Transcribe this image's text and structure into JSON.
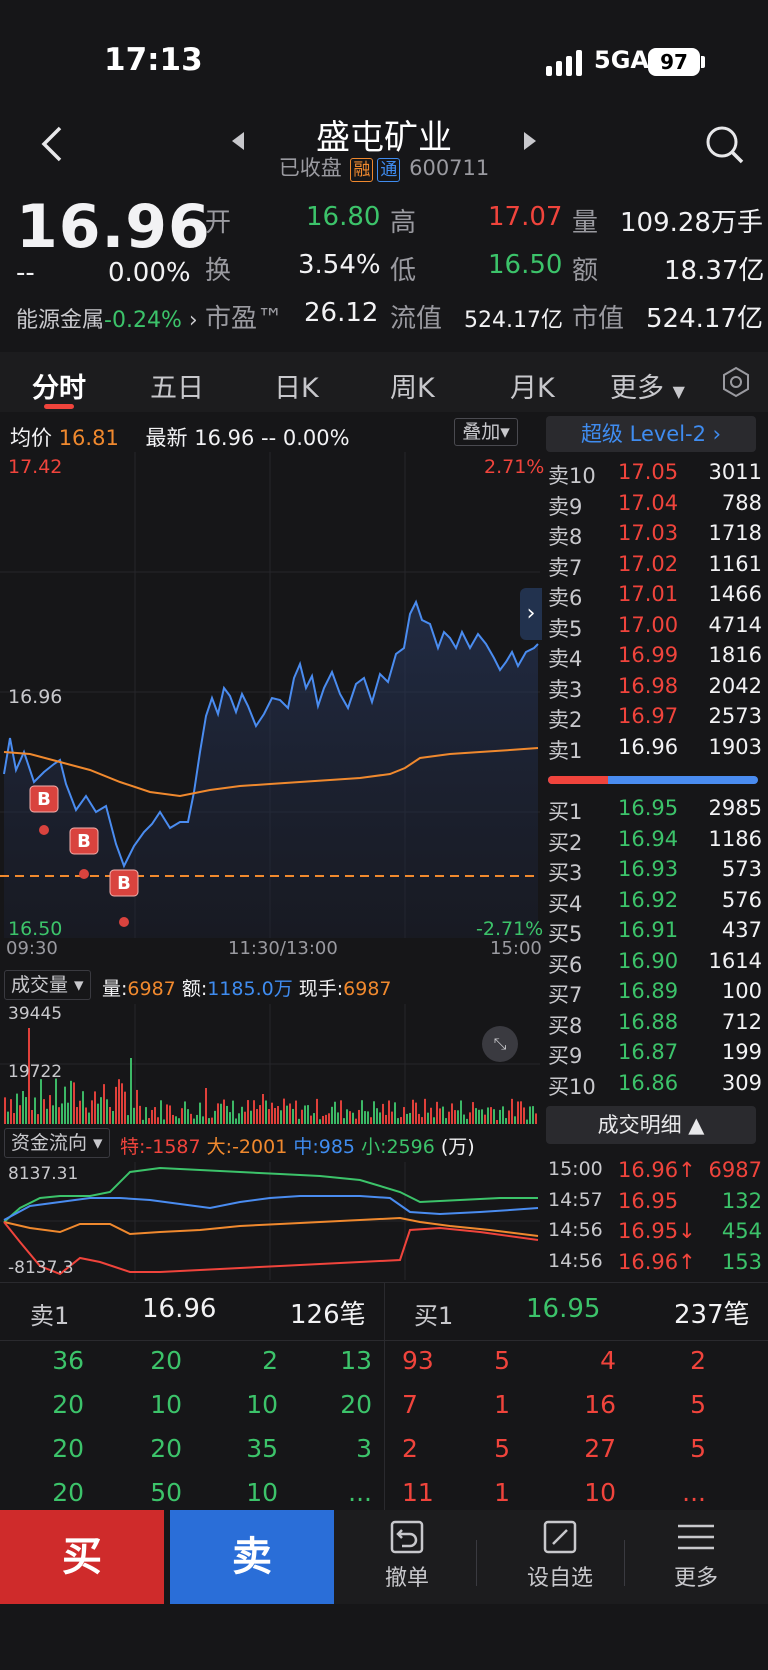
{
  "status_bar": {
    "time": "17:13",
    "network": "5GA",
    "battery": "97"
  },
  "header": {
    "title": "盛屯矿业",
    "status": "已收盘",
    "tag_rong": "融",
    "tag_tong": "通",
    "code": "600711"
  },
  "quote": {
    "price": "16.96",
    "change": "--",
    "change_pct": "0.00%",
    "sector": "能源金属",
    "sector_pct": "-0.24%",
    "open_label": "开",
    "open": "16.80",
    "high_label": "高",
    "high": "17.07",
    "vol_label": "量",
    "vol": "109.28万手",
    "turnover_label": "换",
    "turnover": "3.54%",
    "low_label": "低",
    "low": "16.50",
    "amount_label": "额",
    "amount": "18.37亿",
    "pe_label": "市盈™",
    "pe": "26.12",
    "float_label": "流值",
    "float": "524.17亿",
    "mcap_label": "市值",
    "mcap": "524.17亿"
  },
  "tabs": [
    "分时",
    "五日",
    "日K",
    "周K",
    "月K",
    "更多"
  ],
  "intraday": {
    "avg_label": "均价",
    "avg": "16.81",
    "latest_label": "最新",
    "latest": "16.96",
    "latest_chg": "--",
    "latest_pct": "0.00%",
    "overlay_label": "叠加",
    "y_top": "17.42",
    "y_mid": "16.96",
    "y_bottom": "16.50",
    "pct_top": "2.71%",
    "pct_bottom": "-2.71%",
    "t_start": "09:30",
    "t_mid": "11:30/13:00",
    "t_end": "15:00",
    "marker": "B"
  },
  "volume": {
    "selector": "成交量",
    "vol_label": "量:",
    "vol": "6987",
    "amt_label": "额:",
    "amt": "1185.0万",
    "hand_label": "现手:",
    "hand": "6987",
    "y_top": "39445",
    "y_mid": "19722"
  },
  "capital_flow": {
    "selector": "资金流向",
    "te": "特:-1587",
    "da": "大:-2001",
    "zhong": "中:985",
    "xiao": "小:2596",
    "unit": "(万)",
    "y_top": "8137.31",
    "y_bottom": "-8137.3"
  },
  "level2": {
    "label": "超级 Level-2"
  },
  "sells": [
    {
      "label": "卖10",
      "price": "17.05",
      "vol": "3011"
    },
    {
      "label": "卖9",
      "price": "17.04",
      "vol": "788"
    },
    {
      "label": "卖8",
      "price": "17.03",
      "vol": "1718"
    },
    {
      "label": "卖7",
      "price": "17.02",
      "vol": "1161"
    },
    {
      "label": "卖6",
      "price": "17.01",
      "vol": "1466"
    },
    {
      "label": "卖5",
      "price": "17.00",
      "vol": "4714"
    },
    {
      "label": "卖4",
      "price": "16.99",
      "vol": "1816"
    },
    {
      "label": "卖3",
      "price": "16.98",
      "vol": "2042"
    },
    {
      "label": "卖2",
      "price": "16.97",
      "vol": "2573"
    },
    {
      "label": "卖1",
      "price": "16.96",
      "vol": "1903"
    }
  ],
  "buys": [
    {
      "label": "买1",
      "price": "16.95",
      "vol": "2985"
    },
    {
      "label": "买2",
      "price": "16.94",
      "vol": "1186"
    },
    {
      "label": "买3",
      "price": "16.93",
      "vol": "573"
    },
    {
      "label": "买4",
      "price": "16.92",
      "vol": "576"
    },
    {
      "label": "买5",
      "price": "16.91",
      "vol": "437"
    },
    {
      "label": "买6",
      "price": "16.90",
      "vol": "1614"
    },
    {
      "label": "买7",
      "price": "16.89",
      "vol": "100"
    },
    {
      "label": "买8",
      "price": "16.88",
      "vol": "712"
    },
    {
      "label": "买9",
      "price": "16.87",
      "vol": "199"
    },
    {
      "label": "买10",
      "price": "16.86",
      "vol": "309"
    }
  ],
  "trades_label": "成交明细",
  "trades": [
    {
      "time": "15:00",
      "price": "16.96↑",
      "vol": "6987"
    },
    {
      "time": "14:57",
      "price": "16.95",
      "vol": "132"
    },
    {
      "time": "14:56",
      "price": "16.95↓",
      "vol": "454"
    },
    {
      "time": "14:56",
      "price": "16.96↑",
      "vol": "153"
    }
  ],
  "queue": {
    "sell_label": "卖1",
    "sell_price": "16.96",
    "sell_count": "126笔",
    "buy_label": "买1",
    "buy_price": "16.95",
    "buy_count": "237笔",
    "sell_rows": [
      [
        "36",
        "20",
        "2",
        "13"
      ],
      [
        "20",
        "10",
        "10",
        "20"
      ],
      [
        "20",
        "20",
        "35",
        "3"
      ],
      [
        "20",
        "50",
        "10",
        "..."
      ]
    ],
    "buy_rows": [
      [
        "93",
        "5",
        "4",
        "2"
      ],
      [
        "7",
        "1",
        "16",
        "5"
      ],
      [
        "2",
        "5",
        "27",
        "5"
      ],
      [
        "11",
        "1",
        "10",
        "..."
      ]
    ]
  },
  "actions": {
    "buy": "买",
    "sell": "卖",
    "cancel": "撤单",
    "watch": "设自选",
    "more": "更多"
  },
  "colors": {
    "up": "#f0443c",
    "down": "#3cc36a",
    "price_line": "#4a8cf0",
    "avg_line": "#f0892e"
  }
}
